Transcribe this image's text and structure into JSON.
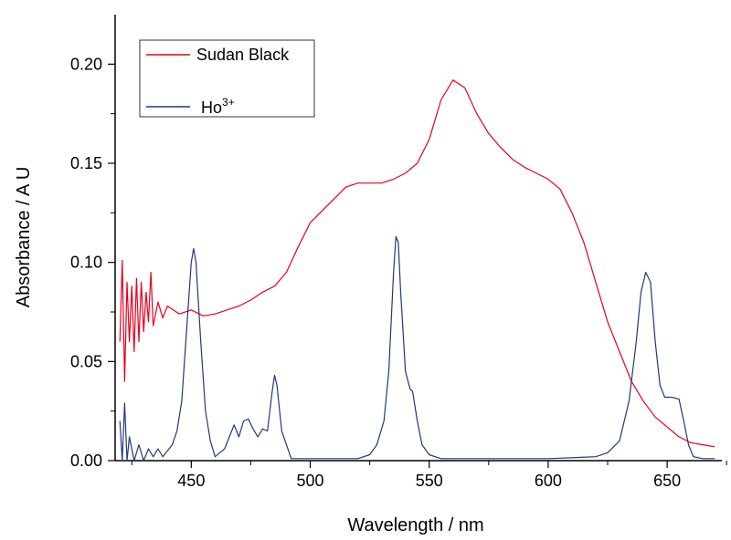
{
  "chart_data": {
    "type": "line",
    "title": "",
    "xlabel": "Wavelength / nm",
    "ylabel": "Absorbance / A U",
    "xlim": [
      418,
      673
    ],
    "ylim": [
      0,
      0.225
    ],
    "xticks": [
      450,
      500,
      550,
      600,
      650
    ],
    "xtick_labels": [
      "450",
      "500",
      "550",
      "600",
      "650"
    ],
    "yticks": [
      0,
      0.05,
      0.1,
      0.15,
      0.2
    ],
    "ytick_labels": [
      "0.00",
      "0.05",
      "0.10",
      "0.15",
      "0.20"
    ],
    "grid": false,
    "legend_position": "top-left",
    "series": [
      {
        "name": "Sudan Black",
        "color": "#e8001c",
        "points": [
          [
            420,
            0.06
          ],
          [
            421,
            0.101
          ],
          [
            422,
            0.04
          ],
          [
            423,
            0.09
          ],
          [
            424,
            0.06
          ],
          [
            425,
            0.088
          ],
          [
            426,
            0.055
          ],
          [
            427,
            0.092
          ],
          [
            428,
            0.06
          ],
          [
            429,
            0.09
          ],
          [
            430,
            0.065
          ],
          [
            431,
            0.085
          ],
          [
            432,
            0.07
          ],
          [
            433,
            0.095
          ],
          [
            434,
            0.068
          ],
          [
            436,
            0.08
          ],
          [
            438,
            0.072
          ],
          [
            440,
            0.078
          ],
          [
            445,
            0.074
          ],
          [
            450,
            0.076
          ],
          [
            455,
            0.073
          ],
          [
            460,
            0.074
          ],
          [
            465,
            0.076
          ],
          [
            470,
            0.078
          ],
          [
            475,
            0.081
          ],
          [
            480,
            0.085
          ],
          [
            485,
            0.088
          ],
          [
            490,
            0.095
          ],
          [
            495,
            0.108
          ],
          [
            500,
            0.12
          ],
          [
            505,
            0.126
          ],
          [
            510,
            0.132
          ],
          [
            515,
            0.138
          ],
          [
            520,
            0.14
          ],
          [
            525,
            0.14
          ],
          [
            530,
            0.14
          ],
          [
            535,
            0.142
          ],
          [
            540,
            0.145
          ],
          [
            545,
            0.15
          ],
          [
            550,
            0.162
          ],
          [
            555,
            0.182
          ],
          [
            560,
            0.192
          ],
          [
            565,
            0.188
          ],
          [
            570,
            0.175
          ],
          [
            575,
            0.165
          ],
          [
            580,
            0.158
          ],
          [
            585,
            0.152
          ],
          [
            590,
            0.148
          ],
          [
            595,
            0.145
          ],
          [
            600,
            0.142
          ],
          [
            605,
            0.137
          ],
          [
            610,
            0.125
          ],
          [
            615,
            0.11
          ],
          [
            620,
            0.09
          ],
          [
            625,
            0.07
          ],
          [
            630,
            0.055
          ],
          [
            635,
            0.04
          ],
          [
            640,
            0.03
          ],
          [
            645,
            0.022
          ],
          [
            650,
            0.017
          ],
          [
            655,
            0.012
          ],
          [
            660,
            0.009
          ],
          [
            665,
            0.008
          ],
          [
            670,
            0.007
          ]
        ]
      },
      {
        "name": "Ho3+",
        "color": "#1f3a7a",
        "points": [
          [
            420,
            0.02
          ],
          [
            421,
            0.0
          ],
          [
            422,
            0.029
          ],
          [
            423,
            0.0
          ],
          [
            424,
            0.012
          ],
          [
            426,
            0.0
          ],
          [
            428,
            0.008
          ],
          [
            430,
            0.0
          ],
          [
            432,
            0.006
          ],
          [
            434,
            0.002
          ],
          [
            436,
            0.006
          ],
          [
            438,
            0.002
          ],
          [
            440,
            0.005
          ],
          [
            442,
            0.008
          ],
          [
            444,
            0.015
          ],
          [
            446,
            0.03
          ],
          [
            448,
            0.065
          ],
          [
            450,
            0.1
          ],
          [
            451,
            0.107
          ],
          [
            452,
            0.1
          ],
          [
            454,
            0.06
          ],
          [
            456,
            0.025
          ],
          [
            458,
            0.01
          ],
          [
            460,
            0.002
          ],
          [
            462,
            0.004
          ],
          [
            464,
            0.006
          ],
          [
            466,
            0.012
          ],
          [
            468,
            0.018
          ],
          [
            470,
            0.012
          ],
          [
            472,
            0.02
          ],
          [
            474,
            0.021
          ],
          [
            476,
            0.016
          ],
          [
            478,
            0.012
          ],
          [
            480,
            0.016
          ],
          [
            482,
            0.015
          ],
          [
            484,
            0.035
          ],
          [
            485,
            0.043
          ],
          [
            486,
            0.038
          ],
          [
            488,
            0.015
          ],
          [
            490,
            0.008
          ],
          [
            492,
            0.001
          ],
          [
            500,
            0.001
          ],
          [
            520,
            0.001
          ],
          [
            525,
            0.003
          ],
          [
            528,
            0.008
          ],
          [
            531,
            0.02
          ],
          [
            533,
            0.045
          ],
          [
            535,
            0.095
          ],
          [
            536,
            0.113
          ],
          [
            537,
            0.11
          ],
          [
            538,
            0.085
          ],
          [
            540,
            0.045
          ],
          [
            542,
            0.036
          ],
          [
            543,
            0.035
          ],
          [
            545,
            0.02
          ],
          [
            547,
            0.008
          ],
          [
            550,
            0.003
          ],
          [
            555,
            0.001
          ],
          [
            600,
            0.001
          ],
          [
            620,
            0.002
          ],
          [
            625,
            0.004
          ],
          [
            630,
            0.01
          ],
          [
            634,
            0.03
          ],
          [
            637,
            0.06
          ],
          [
            639,
            0.085
          ],
          [
            641,
            0.095
          ],
          [
            643,
            0.09
          ],
          [
            645,
            0.06
          ],
          [
            647,
            0.038
          ],
          [
            649,
            0.032
          ],
          [
            652,
            0.032
          ],
          [
            655,
            0.031
          ],
          [
            657,
            0.02
          ],
          [
            659,
            0.008
          ],
          [
            661,
            0.002
          ],
          [
            665,
            0.001
          ],
          [
            670,
            0.001
          ]
        ]
      }
    ],
    "legend": [
      {
        "label": "Sudan Black",
        "base": "Sudan Black",
        "sup": ""
      },
      {
        "label": "Ho3+",
        "base": "Ho",
        "sup": "3+"
      }
    ]
  }
}
